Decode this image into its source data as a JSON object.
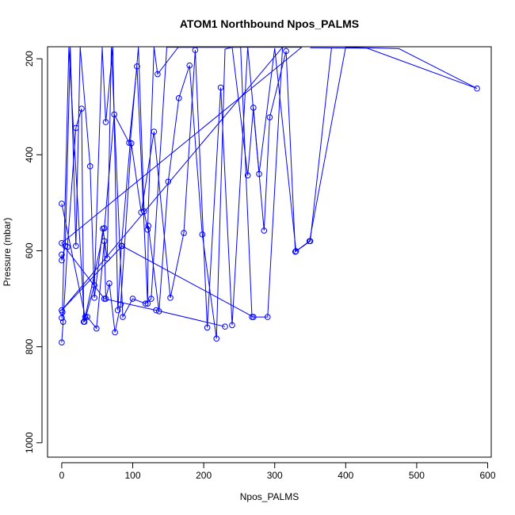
{
  "chart_data": {
    "type": "line",
    "title": "ATOM1 Northbound Npos_PALMS",
    "xlabel": "Npos_PALMS",
    "ylabel": "Pressure (mbar)",
    "xlim": [
      -20,
      605
    ],
    "ylim": [
      1030,
      175
    ],
    "y_reversed": true,
    "xticks": [
      0,
      100,
      200,
      300,
      400,
      500,
      600
    ],
    "yticks": [
      200,
      400,
      600,
      800,
      1000
    ],
    "grid": false,
    "color": "#0000ff",
    "markers": "open-circle",
    "series": [
      {
        "x": [
          0,
          2,
          8,
          20,
          28,
          31,
          36,
          49,
          60,
          62,
          67,
          75,
          83,
          98,
          112,
          130,
          153,
          172,
          188,
          205,
          224,
          240,
          262,
          278,
          300,
          330,
          350,
          380
        ],
        "y": [
          791,
          748,
          592,
          344,
          304,
          748,
          738,
          762,
          580,
          700,
          668,
          770,
          712,
          376,
          520,
          352,
          698,
          563,
          182,
          760,
          260,
          755,
          176,
          440,
          178,
          601,
          580,
          178
        ]
      },
      {
        "x": [
          0,
          33,
          60,
          74,
          95,
          106,
          121,
          122,
          137,
          150,
          165,
          180,
          198,
          218,
          230,
          240,
          262,
          270,
          285,
          293,
          316,
          329,
          349,
          400,
          475,
          585,
          430,
          350
        ],
        "y": [
          502,
          738,
          553,
          316,
          375,
          216,
          710,
          548,
          726,
          456,
          282,
          214,
          566,
          783,
          180,
          176,
          443,
          302,
          558,
          322,
          184,
          602,
          580,
          176,
          179,
          262,
          178,
          177
        ]
      },
      {
        "x": [
          0,
          0,
          5,
          12,
          20,
          26,
          40,
          46,
          58,
          64,
          70,
          86,
          100,
          118,
          126,
          148,
          162,
          180,
          200,
          219,
          232,
          252,
          268,
          290,
          311,
          0,
          85,
          270
        ],
        "y": [
          608,
          620,
          590,
          176,
          590,
          176,
          424,
          698,
          554,
          616,
          176,
          738,
          700,
          710,
          700,
          176,
          176,
          176,
          176,
          176,
          176,
          176,
          738,
          738,
          176,
          724,
          590,
          738
        ]
      },
      {
        "x": [
          0,
          1,
          10,
          32,
          46,
          57,
          62,
          72,
          79,
          84,
          108,
          116,
          121,
          130,
          135,
          164,
          177,
          198,
          211,
          236,
          264,
          289,
          320,
          338,
          0,
          60,
          133,
          230
        ],
        "y": [
          740,
          728,
          176,
          748,
          672,
          176,
          332,
          176,
          724,
          590,
          176,
          518,
          556,
          176,
          232,
          176,
          176,
          176,
          176,
          176,
          176,
          176,
          176,
          176,
          584,
          700,
          724,
          758
        ]
      }
    ]
  }
}
